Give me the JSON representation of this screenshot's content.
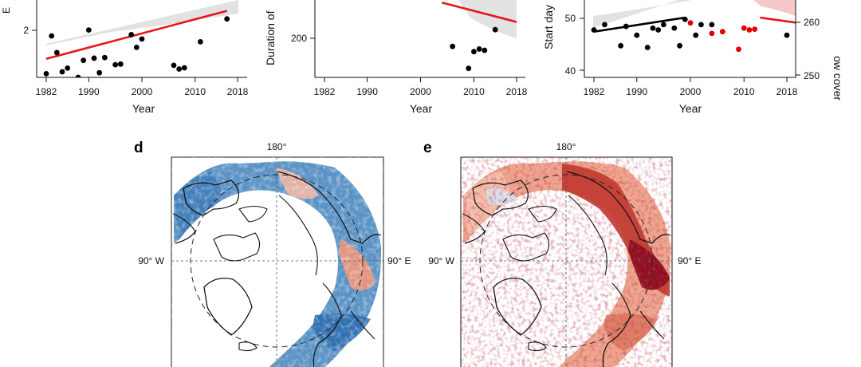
{
  "chart_data": [
    {
      "type": "scatter",
      "xlabel": "Year",
      "ylabel": "E",
      "x_ticks": [
        "1982",
        "1990",
        "2000",
        "2010",
        "2018"
      ],
      "y_ticks": [
        "2"
      ],
      "xlim": [
        1980,
        2020
      ],
      "ylim": [
        1.0,
        3.5
      ],
      "series": [
        {
          "color": "#000000",
          "x": [
            1982,
            1983,
            1984,
            1985,
            1986,
            1988,
            1989,
            1990,
            1991,
            1992,
            1993,
            1995,
            1996,
            1998,
            1999,
            2000,
            2006,
            2007,
            2008,
            2011,
            2016
          ],
          "y": [
            1.12,
            2.34,
            1.8,
            1.18,
            1.3,
            1.0,
            1.55,
            2.53,
            1.62,
            1.15,
            1.64,
            1.41,
            1.43,
            2.38,
            1.97,
            2.24,
            1.39,
            1.27,
            1.31,
            2.15,
            2.89
          ]
        }
      ],
      "trend": {
        "color": "#e8141b",
        "x": [
          1982,
          2016
        ],
        "y": [
          1.6,
          3.15
        ]
      }
    },
    {
      "type": "scatter",
      "xlabel": "Year",
      "ylabel": "Duration of",
      "x_ticks": [
        "1982",
        "1990",
        "2000",
        "2010",
        "2018"
      ],
      "y_ticks": [
        "200"
      ],
      "xlim": [
        1980,
        2020
      ],
      "ylim": [
        180,
        240
      ],
      "series": [
        {
          "color": "#000000",
          "x": [
            2006,
            2009,
            2010,
            2011,
            2012,
            2014
          ],
          "y": [
            204,
            187,
            200,
            202,
            201,
            217
          ]
        }
      ],
      "trend": {
        "color": "#e8141b",
        "x": [
          2004,
          2018
        ],
        "y": [
          238,
          223
        ]
      }
    },
    {
      "type": "scatter",
      "xlabel": "Year",
      "ylabel": "Start day",
      "y2label": "ow cover",
      "x_ticks": [
        "1982",
        "1990",
        "2000",
        "2010",
        "2018"
      ],
      "y_ticks": [
        "40",
        "50"
      ],
      "y2_ticks": [
        "250",
        "260"
      ],
      "xlim": [
        1980,
        2020
      ],
      "ylim": [
        38,
        60
      ],
      "series": [
        {
          "color": "#000000",
          "x": [
            1982,
            1984,
            1987,
            1988,
            1990,
            1992,
            1993,
            1994,
            1995,
            1997,
            1998,
            1999,
            2001,
            2002,
            2004,
            2018
          ],
          "y": [
            51.5,
            53,
            47,
            52.5,
            50,
            46.5,
            52,
            51.5,
            53,
            52,
            47,
            54.5,
            50,
            53,
            53,
            50
          ]
        },
        {
          "color": "#e00000",
          "x": [
            2000,
            2004,
            2006,
            2009,
            2010,
            2011,
            2012
          ],
          "y": [
            53.5,
            50.5,
            51,
            46,
            52,
            51.5,
            51.7
          ]
        }
      ],
      "trend": {
        "color": "#000000",
        "x": [
          1982,
          1999
        ],
        "y": [
          51.0,
          55.0
        ]
      },
      "trend2": {
        "color": "#e8141b",
        "x": [
          2013,
          2020
        ],
        "y": [
          55.0,
          53.5
        ]
      }
    }
  ],
  "maps": {
    "d": {
      "label": "d",
      "top": "180°",
      "left": "90° W",
      "right": "90° E",
      "palette": "blue"
    },
    "e": {
      "label": "e",
      "top": "180°",
      "left": "90° W",
      "right": "90° E",
      "palette": "red"
    }
  }
}
